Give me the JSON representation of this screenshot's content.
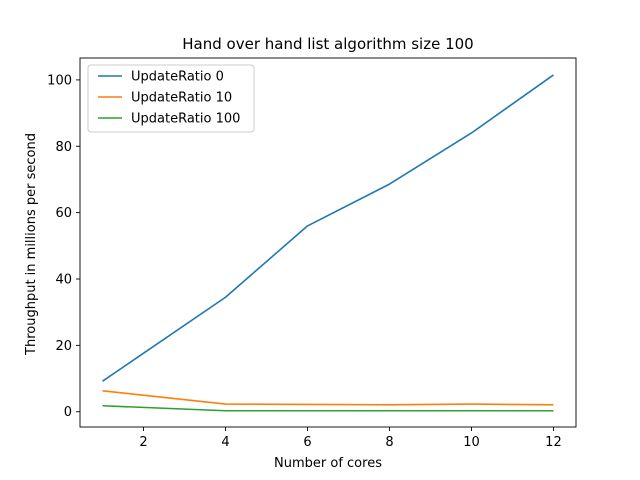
{
  "chart_data": {
    "type": "line",
    "title": "Hand over hand list algorithm size 100",
    "xlabel": "Number of cores",
    "ylabel": "Throughput in millions per second",
    "xlim": [
      0.45,
      12.55
    ],
    "ylim": [
      -4.6,
      106.6
    ],
    "xticks": [
      2,
      4,
      6,
      8,
      10,
      12
    ],
    "yticks": [
      0,
      20,
      40,
      60,
      80,
      100
    ],
    "grid": false,
    "legend": "top-left",
    "x": [
      1,
      4,
      6,
      8,
      10,
      12
    ],
    "series": [
      {
        "name": "UpdateRatio 0",
        "color": "#1f77b4",
        "values": [
          9.2,
          34.5,
          56.0,
          68.6,
          84.0,
          101.5
        ]
      },
      {
        "name": "UpdateRatio 10",
        "color": "#ff7f0e",
        "values": [
          6.3,
          2.3,
          2.2,
          2.1,
          2.3,
          2.1
        ]
      },
      {
        "name": "UpdateRatio 100",
        "color": "#2ca02c",
        "values": [
          1.8,
          0.3,
          0.3,
          0.3,
          0.3,
          0.3
        ]
      }
    ]
  }
}
